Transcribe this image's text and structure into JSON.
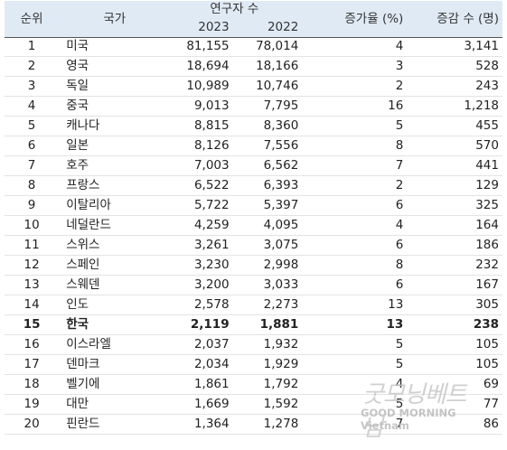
{
  "headers": {
    "rank": "순위",
    "country": "국가",
    "researchers": "연구자 수",
    "year_2023": "2023",
    "year_2022": "2022",
    "growth_rate": "증가율 (%)",
    "change": "증감 수 (명)"
  },
  "rows": [
    {
      "rank": "1",
      "country": "미국",
      "y2023": "81,155",
      "y2022": "78,014",
      "pct": "4",
      "chg": "3,141"
    },
    {
      "rank": "2",
      "country": "영국",
      "y2023": "18,694",
      "y2022": "18,166",
      "pct": "3",
      "chg": "528"
    },
    {
      "rank": "3",
      "country": "독일",
      "y2023": "10,989",
      "y2022": "10,746",
      "pct": "2",
      "chg": "243"
    },
    {
      "rank": "4",
      "country": "중국",
      "y2023": "9,013",
      "y2022": "7,795",
      "pct": "16",
      "chg": "1,218"
    },
    {
      "rank": "5",
      "country": "캐나다",
      "y2023": "8,815",
      "y2022": "8,360",
      "pct": "5",
      "chg": "455"
    },
    {
      "rank": "6",
      "country": "일본",
      "y2023": "8,126",
      "y2022": "7,556",
      "pct": "8",
      "chg": "570"
    },
    {
      "rank": "7",
      "country": "호주",
      "y2023": "7,003",
      "y2022": "6,562",
      "pct": "7",
      "chg": "441"
    },
    {
      "rank": "8",
      "country": "프랑스",
      "y2023": "6,522",
      "y2022": "6,393",
      "pct": "2",
      "chg": "129"
    },
    {
      "rank": "9",
      "country": "이탈리아",
      "y2023": "5,722",
      "y2022": "5,397",
      "pct": "6",
      "chg": "325"
    },
    {
      "rank": "10",
      "country": "네덜란드",
      "y2023": "4,259",
      "y2022": "4,095",
      "pct": "4",
      "chg": "164"
    },
    {
      "rank": "11",
      "country": "스위스",
      "y2023": "3,261",
      "y2022": "3,075",
      "pct": "6",
      "chg": "186"
    },
    {
      "rank": "12",
      "country": "스페인",
      "y2023": "3,230",
      "y2022": "2,998",
      "pct": "8",
      "chg": "232"
    },
    {
      "rank": "13",
      "country": "스웨덴",
      "y2023": "3,200",
      "y2022": "3,033",
      "pct": "6",
      "chg": "167"
    },
    {
      "rank": "14",
      "country": "인도",
      "y2023": "2,578",
      "y2022": "2,273",
      "pct": "13",
      "chg": "305"
    },
    {
      "rank": "15",
      "country": "한국",
      "y2023": "2,119",
      "y2022": "1,881",
      "pct": "13",
      "chg": "238",
      "highlight": true
    },
    {
      "rank": "16",
      "country": "이스라엘",
      "y2023": "2,037",
      "y2022": "1,932",
      "pct": "5",
      "chg": "105"
    },
    {
      "rank": "17",
      "country": "덴마크",
      "y2023": "2,034",
      "y2022": "1,929",
      "pct": "5",
      "chg": "105"
    },
    {
      "rank": "18",
      "country": "벨기에",
      "y2023": "1,861",
      "y2022": "1,792",
      "pct": "4",
      "chg": "69"
    },
    {
      "rank": "19",
      "country": "대만",
      "y2023": "1,669",
      "y2022": "1,592",
      "pct": "5",
      "chg": "77"
    },
    {
      "rank": "20",
      "country": "핀란드",
      "y2023": "1,364",
      "y2022": "1,278",
      "pct": "7",
      "chg": "86"
    }
  ],
  "watermark": {
    "script": "굿모닝베트남",
    "text": "GOOD MORNING Vietnam"
  }
}
